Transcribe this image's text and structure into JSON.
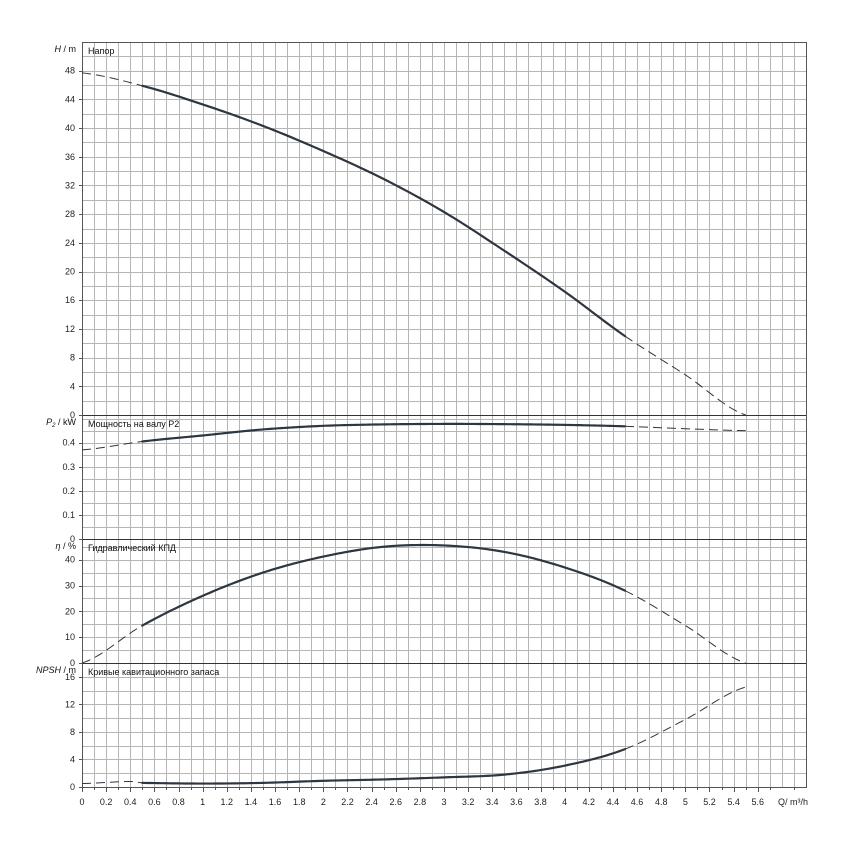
{
  "chart_data": {
    "type": "line",
    "x_label": "Q/ m³/h",
    "x_range": [
      0,
      6
    ],
    "x_ticks": [
      0,
      0.2,
      0.4,
      0.6,
      0.8,
      1,
      1.2,
      1.4,
      1.6,
      1.8,
      2,
      2.2,
      2.4,
      2.6,
      2.8,
      3,
      3.2,
      3.4,
      3.6,
      3.8,
      4,
      4.2,
      4.4,
      4.6,
      4.8,
      5,
      5.2,
      5.4,
      5.6
    ],
    "x_tick_labels": [
      "0",
      "0.2",
      "0.4",
      "0.6",
      "0.8",
      "1",
      "1.2",
      "1.4",
      "1.6",
      "1.8",
      "2",
      "2.2",
      "2.4",
      "2.6",
      "2.8",
      "3",
      "3.2",
      "3.4",
      "3.6",
      "3.8",
      "4",
      "4.2",
      "4.4",
      "4.6",
      "4.8",
      "5",
      "5.2",
      "5.4",
      "5.6"
    ],
    "grid": true,
    "panels": [
      {
        "id": "head",
        "title": "Напор",
        "y_label_main": "H",
        "y_label_unit": "/ m",
        "y_range": [
          0,
          52
        ],
        "y_ticks": [
          0,
          4,
          8,
          12,
          16,
          20,
          24,
          28,
          32,
          36,
          40,
          44,
          48
        ],
        "y_tick_labels": [
          "0",
          "4",
          "8",
          "12",
          "16",
          "20",
          "24",
          "28",
          "32",
          "36",
          "40",
          "44",
          "48"
        ],
        "solid_x_range": [
          0.5,
          4.5
        ],
        "x": [
          0,
          0.5,
          1,
          1.5,
          2,
          2.5,
          3,
          3.5,
          4,
          4.5,
          5,
          5.5
        ],
        "y": [
          47.7,
          45.9,
          43.3,
          40.3,
          36.8,
          32.9,
          28.3,
          22.9,
          17.2,
          11.0,
          5.6,
          0.0
        ]
      },
      {
        "id": "power",
        "title": "Мощность на валу P2",
        "y_label_main": "P",
        "y_label_sub": "2",
        "y_label_unit": "/ kW",
        "y_range": [
          0,
          0.515
        ],
        "y_ticks": [
          0,
          0.1,
          0.2,
          0.3,
          0.4
        ],
        "y_tick_labels": [
          "0",
          "0.1",
          "0.2",
          "0.3",
          "0.4"
        ],
        "solid_x_range": [
          0.5,
          4.5
        ],
        "x": [
          0,
          0.5,
          1,
          1.5,
          2,
          2.5,
          3,
          3.5,
          4,
          4.5,
          5,
          5.5
        ],
        "y": [
          0.37,
          0.405,
          0.43,
          0.455,
          0.47,
          0.476,
          0.478,
          0.477,
          0.474,
          0.468,
          0.458,
          0.45
        ]
      },
      {
        "id": "efficiency",
        "title": "Гидравлический КПД",
        "y_label_main": "η",
        "y_label_unit": "/ %",
        "y_range": [
          0,
          48
        ],
        "y_ticks": [
          0,
          10,
          20,
          30,
          40
        ],
        "y_tick_labels": [
          "0",
          "10",
          "20",
          "30",
          "40"
        ],
        "solid_x_range": [
          0.5,
          4.5
        ],
        "x": [
          0,
          0.5,
          1,
          1.5,
          2,
          2.5,
          3,
          3.5,
          4,
          4.5,
          5,
          5.5
        ],
        "y": [
          0,
          14.5,
          26,
          35,
          41.2,
          45,
          45.5,
          43,
          37,
          28,
          14.5,
          0
        ]
      },
      {
        "id": "npsh",
        "title": "Кривые кавитационного запаса",
        "y_label_main": "NPSH",
        "y_label_unit": "/ m",
        "y_range": [
          0,
          18
        ],
        "y_ticks": [
          0,
          4,
          8,
          12,
          16
        ],
        "y_tick_labels": [
          "0",
          "4",
          "8",
          "12",
          "16"
        ],
        "solid_x_range": [
          0.5,
          4.5
        ],
        "x": [
          0,
          0.4,
          0.5,
          1,
          1.5,
          2,
          2.5,
          3,
          3.5,
          4,
          4.5,
          5,
          5.5
        ],
        "y": [
          0.5,
          0.8,
          0.6,
          0.5,
          0.6,
          0.9,
          1.1,
          1.4,
          1.8,
          3.1,
          5.5,
          9.8,
          14.5
        ]
      }
    ]
  }
}
